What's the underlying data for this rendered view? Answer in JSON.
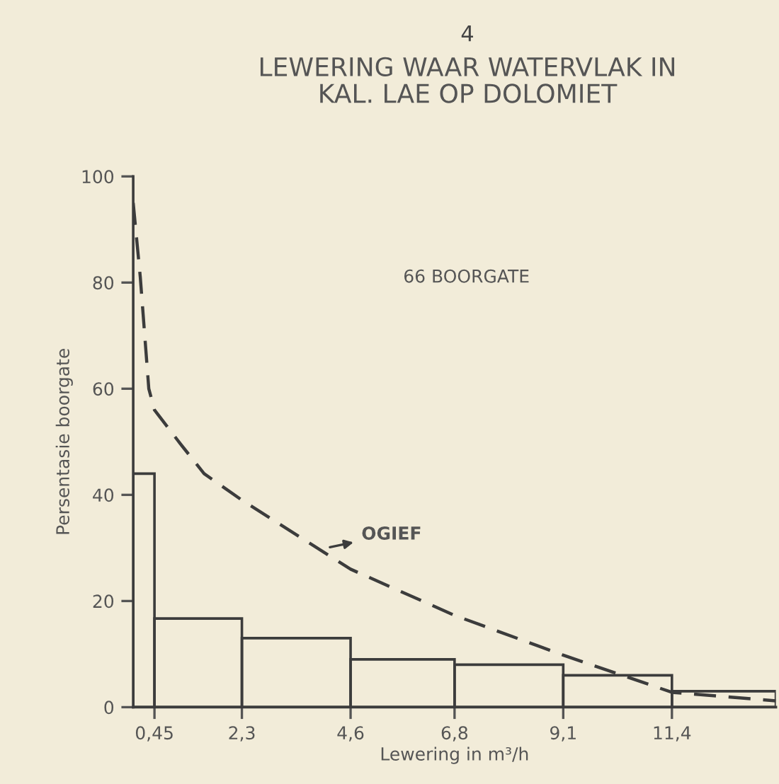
{
  "chart_data": {
    "type": "histogram",
    "subtitle": "4",
    "title": "LEWERING WAAR WATERVLAK IN\nKAL. LAE OP DOLOMIET",
    "xlabel": "Lewering in m³/h",
    "ylabel": "Persentasie boorgate",
    "bins": [
      0,
      0.45,
      2.3,
      4.6,
      6.8,
      9.1,
      11.4,
      13.6
    ],
    "values": [
      44,
      16.7,
      13,
      9,
      8,
      6,
      3
    ],
    "color": "#3c3c3c",
    "series": [
      {
        "name": "OGIEF",
        "type": "line",
        "color": "#3c3c3c",
        "line_style": "dashed",
        "x": [
          0,
          0.15,
          0.33,
          0.45,
          1.0,
          1.5,
          2.3,
          4.6,
          6.8,
          9.1,
          11.4,
          13.6
        ],
        "values": [
          95,
          81,
          60,
          56,
          49.6,
          44,
          39,
          26,
          17.3,
          9.8,
          2.8,
          1.2
        ]
      }
    ],
    "xlim": [
      0,
      13.6
    ],
    "ylim": [
      0,
      100
    ],
    "xticks": [
      {
        "value": 0.45,
        "label": "0,45"
      },
      {
        "value": 2.3,
        "label": "2,3"
      },
      {
        "value": 4.6,
        "label": "4,6"
      },
      {
        "value": 6.8,
        "label": "6,8"
      },
      {
        "value": 9.1,
        "label": "9,1"
      },
      {
        "value": 11.4,
        "label": "11,4"
      }
    ],
    "yticks": [
      0,
      20,
      40,
      60,
      80,
      100
    ],
    "annotations": [
      "66 BOORGATE"
    ],
    "grid": false
  }
}
